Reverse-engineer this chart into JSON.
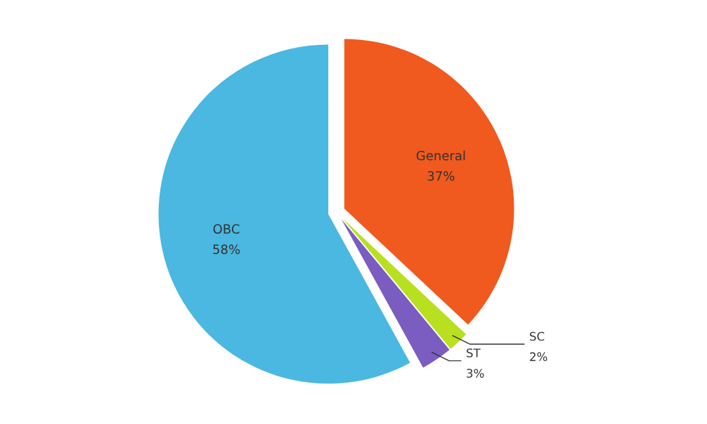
{
  "chart_data": {
    "type": "pie",
    "categories": [
      "General",
      "SC",
      "ST",
      "OBC"
    ],
    "values": [
      37,
      2,
      3,
      58
    ],
    "value_labels": [
      "37%",
      "2%",
      "3%",
      "58%"
    ],
    "colors": [
      "#f05a1e",
      "#b8e020",
      "#7b5cc0",
      "#4ab8e0"
    ],
    "legend": false
  }
}
